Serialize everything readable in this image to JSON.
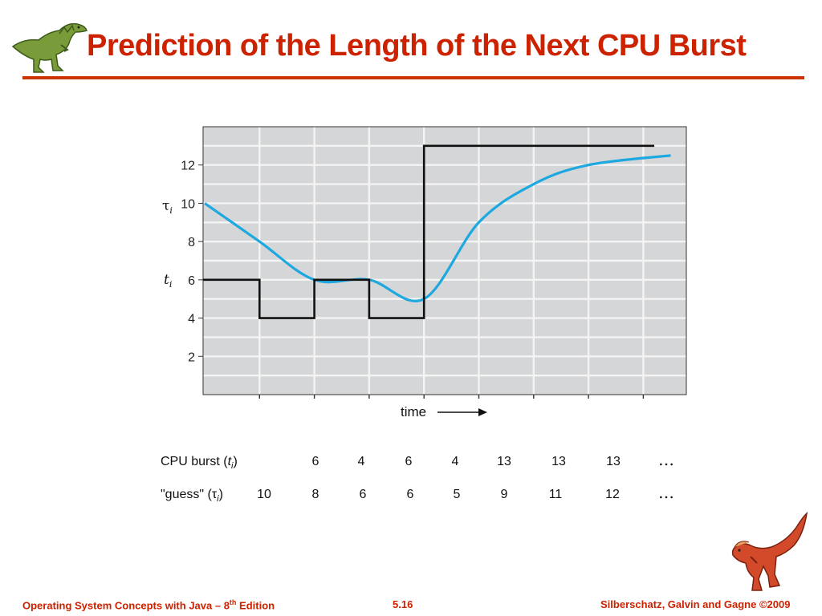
{
  "slide": {
    "title": "Prediction of the Length of the Next CPU Burst"
  },
  "footer": {
    "left_prefix": "Operating System Concepts with Java – 8",
    "left_sup": "th",
    "left_suffix": " Edition",
    "center": "5.16",
    "right": "Silberschatz, Galvin and Gagne ©2009"
  },
  "logos": {
    "left": "green-dinosaur-icon",
    "right": "red-dinosaur-icon"
  },
  "chart_data": {
    "type": "line",
    "title": "",
    "ylabel_tau": "τ",
    "ylabel_t": "t",
    "ylabel_sub": "i",
    "xlabel": "time",
    "ylim": [
      0,
      14
    ],
    "yticks": [
      2,
      4,
      6,
      8,
      10,
      12
    ],
    "grid": true,
    "series": [
      {
        "key": "burst",
        "style": "step",
        "color": "#111111",
        "x": [
          0,
          1,
          2,
          3,
          4,
          5,
          6,
          7,
          8.2
        ],
        "values": [
          6,
          4,
          6,
          4,
          13,
          13,
          13,
          13,
          13
        ]
      },
      {
        "key": "guess",
        "style": "smooth",
        "color": "#1ea8e0",
        "x": [
          0,
          1,
          2,
          3,
          4,
          5,
          6,
          7,
          8.5
        ],
        "values": [
          10,
          8,
          6,
          6,
          5,
          9,
          11,
          12,
          12.5
        ]
      }
    ],
    "table": {
      "row1_label": "CPU burst (",
      "row1_var": "t",
      "row2_label": "\"guess\" (",
      "row2_var": "τ",
      "sub": "i",
      "close": ")",
      "burst_values": [
        "6",
        "4",
        "6",
        "4",
        "13",
        "13",
        "13"
      ],
      "guess_values": [
        "10",
        "8",
        "6",
        "6",
        "5",
        "9",
        "11",
        "12"
      ],
      "ellipsis": "…"
    }
  }
}
